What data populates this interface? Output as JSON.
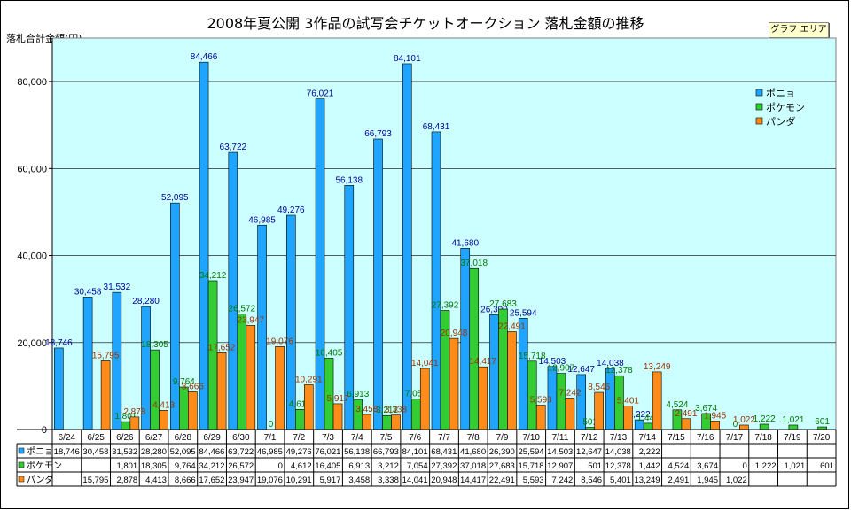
{
  "title": "2008年夏公開  3作品の試写会チケットオークション 落札金額の推移",
  "y_axis_label": "落札合計金額(円)",
  "chart_area_button": "グラフ エリア",
  "colors": {
    "plot_bg": "#ccffff",
    "gridline": "#000000"
  },
  "chart_data": {
    "type": "bar",
    "title": "2008年夏公開  3作品の試写会チケットオークション 落札金額の推移",
    "xlabel": "",
    "ylabel": "落札合計金額(円)",
    "ylim": [
      0,
      90000
    ],
    "yticks": [
      0,
      20000,
      40000,
      60000,
      80000
    ],
    "ytick_labels": [
      "0",
      "20,000",
      "40,000",
      "60,000",
      "80,000"
    ],
    "grid": true,
    "legend_position": "top-right",
    "categories": [
      "6/24",
      "6/25",
      "6/26",
      "6/27",
      "6/28",
      "6/29",
      "6/30",
      "7/1",
      "7/2",
      "7/3",
      "7/4",
      "7/5",
      "7/6",
      "7/7",
      "7/8",
      "7/9",
      "7/10",
      "7/11",
      "7/12",
      "7/13",
      "7/14",
      "7/15",
      "7/16",
      "7/17",
      "7/18",
      "7/19",
      "7/20"
    ],
    "series": [
      {
        "name": "ポニョ",
        "color": "#1fa5ff",
        "label_color": "#000099",
        "values": [
          18746,
          30458,
          31532,
          28280,
          52095,
          84466,
          63722,
          46985,
          49276,
          76021,
          56138,
          66793,
          84101,
          68431,
          41680,
          26390,
          25594,
          14503,
          12647,
          14038,
          2222,
          null,
          null,
          null,
          null,
          null,
          null
        ],
        "data_labels": [
          "18,746",
          "30,458",
          "31,532",
          "28,280",
          "52,095",
          "84,466",
          "63,722",
          "46,985",
          "49,276",
          "76,021",
          "56,138",
          "66,793",
          "84,101",
          "68,431",
          "41,680",
          "26,390",
          "25,594",
          "14,503",
          "12,647",
          "14,038",
          "2,222",
          "",
          "",
          "",
          "",
          "",
          ""
        ],
        "table_labels": [
          "18,746",
          "30,458",
          "31,532",
          "28,280",
          "52,095",
          "84,466",
          "63,722",
          "46,985",
          "49,276",
          "76,021",
          "56,138",
          "66,793",
          "84,101",
          "68,431",
          "41,680",
          "26,390",
          "25,594",
          "14,503",
          "12,647",
          "14,038",
          "2,222",
          "",
          "",
          "",
          "",
          "",
          ""
        ]
      },
      {
        "name": "ポケモン",
        "color": "#33cc33",
        "label_color": "#007700",
        "values": [
          null,
          null,
          1801,
          18305,
          9764,
          34212,
          26572,
          0,
          4612,
          16405,
          6913,
          3212,
          7054,
          27392,
          37018,
          27683,
          15718,
          12907,
          501,
          12378,
          1442,
          4524,
          3674,
          0,
          1222,
          1021,
          601
        ],
        "data_labels": [
          "",
          "",
          "1,801",
          "18,305",
          "9,764",
          "34,212",
          "26,572",
          "0",
          "4,612",
          "16,405",
          "6,913",
          "3,212",
          "7,054",
          "27,392",
          "37,018",
          "27,683",
          "15,718",
          "12,907",
          "501",
          "12,378",
          "1,442",
          "4,524",
          "3,674",
          "0",
          "1,222",
          "1,021",
          "601"
        ],
        "table_labels": [
          "",
          "",
          "1,801",
          "18,305",
          "9,764",
          "34,212",
          "26,572",
          "0",
          "4,612",
          "16,405",
          "6,913",
          "3,212",
          "7,054",
          "27,392",
          "37,018",
          "27,683",
          "15,718",
          "12,907",
          "501",
          "12,378",
          "1,442",
          "4,524",
          "3,674",
          "0",
          "1,222",
          "1,021",
          "601"
        ]
      },
      {
        "name": "パンダ",
        "color": "#ff8c1a",
        "label_color": "#993300",
        "values": [
          null,
          15795,
          2878,
          4413,
          8666,
          17652,
          23947,
          19076,
          10291,
          5917,
          3458,
          3338,
          14041,
          20948,
          14417,
          22491,
          5593,
          7242,
          8546,
          5401,
          13249,
          2491,
          1945,
          1022,
          null,
          null,
          null
        ],
        "data_labels": [
          "",
          "15,795",
          "2,878",
          "4,413",
          "8,666",
          "17,652",
          "23,947",
          "19,076",
          "10,291",
          "5,917",
          "3,458",
          "3,338",
          "14,041",
          "20,948",
          "14,417",
          "22,491",
          "5,593",
          "7,242",
          "8,546",
          "5,401",
          "13,249",
          "2,491",
          "1,945",
          "1,022",
          "",
          "",
          ""
        ],
        "table_labels": [
          "",
          "15,795",
          "2,878",
          "4,413",
          "8,666",
          "17,652",
          "23,947",
          "19,076",
          "10,291",
          "5,917",
          "3,458",
          "3,338",
          "14,041",
          "20,948",
          "14,417",
          "22,491",
          "5,593",
          "7,242",
          "8,546",
          "5,401",
          "13,249",
          "2,491",
          "1,945",
          "1,022",
          "",
          "",
          ""
        ]
      }
    ]
  }
}
